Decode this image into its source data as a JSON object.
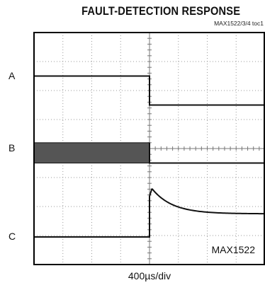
{
  "chart_data": {
    "type": "line",
    "title": "FAULT-DETECTION RESPONSE",
    "reference": "MAX1522/3/4 toc1",
    "watermark": "MAX1522",
    "timebase": "400µs/div",
    "divisions": {
      "x": 8,
      "y": 8
    },
    "grid": true,
    "fault_time_div": 4.0,
    "colors": {
      "trace": "#111111",
      "grid": "#9a9a9a",
      "frame": "#000000",
      "switching_fill": "#555555"
    },
    "channels": [
      {
        "label": "A",
        "kind": "step",
        "level_before_div": 6.5,
        "level_after_div": 5.5
      },
      {
        "label": "B",
        "kind": "switching-then-off",
        "band_top_div": 4.2,
        "band_bottom_div": 3.5,
        "level_after_div": 3.5
      },
      {
        "label": "C",
        "kind": "spike-decay",
        "baseline_div": 0.95,
        "peak_div": 2.6,
        "settle_div": 1.75,
        "decay_tau_div": 0.7
      }
    ],
    "label_positions_div": [
      6.5,
      4.0,
      0.95
    ]
  }
}
